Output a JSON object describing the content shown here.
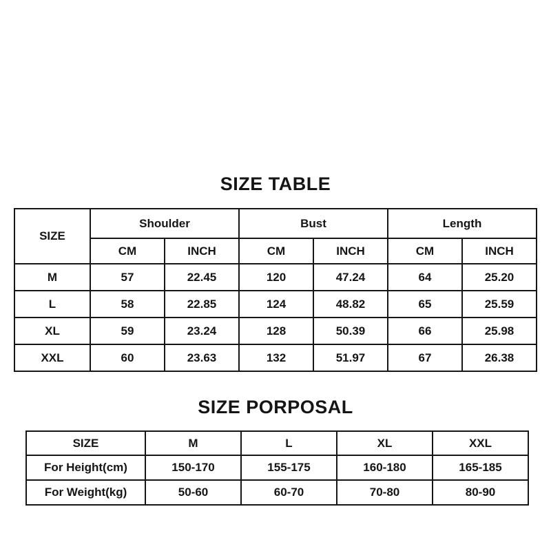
{
  "theme": {
    "bg_color": "#ffffff",
    "text_color": "#151515",
    "border_color": "#151515"
  },
  "size_table": {
    "title": "SIZE TABLE",
    "size_header": "SIZE",
    "group_headers": [
      "Shoulder",
      "Bust",
      "Length"
    ],
    "unit_headers": [
      "CM",
      "INCH",
      "CM",
      "INCH",
      "CM",
      "INCH"
    ],
    "rows": [
      {
        "size": "M",
        "values": [
          "57",
          "22.45",
          "120",
          "47.24",
          "64",
          "25.20"
        ]
      },
      {
        "size": "L",
        "values": [
          "58",
          "22.85",
          "124",
          "48.82",
          "65",
          "25.59"
        ]
      },
      {
        "size": "XL",
        "values": [
          "59",
          "23.24",
          "128",
          "50.39",
          "66",
          "25.98"
        ]
      },
      {
        "size": "XXL",
        "values": [
          "60",
          "23.63",
          "132",
          "51.97",
          "67",
          "26.38"
        ]
      }
    ]
  },
  "size_proposal": {
    "title": "SIZE PORPOSAL",
    "headers": [
      "SIZE",
      "M",
      "L",
      "XL",
      "XXL"
    ],
    "rows": [
      {
        "label": "For Height(cm)",
        "values": [
          "150-170",
          "155-175",
          "160-180",
          "165-185"
        ]
      },
      {
        "label": "For Weight(kg)",
        "values": [
          "50-60",
          "60-70",
          "70-80",
          "80-90"
        ]
      }
    ]
  },
  "chart_data": [
    {
      "type": "table",
      "title": "SIZE TABLE",
      "columns": [
        "SIZE",
        "Shoulder CM",
        "Shoulder INCH",
        "Bust CM",
        "Bust INCH",
        "Length CM",
        "Length INCH"
      ],
      "rows": [
        [
          "M",
          57,
          22.45,
          120,
          47.24,
          64,
          25.2
        ],
        [
          "L",
          58,
          22.85,
          124,
          48.82,
          65,
          25.59
        ],
        [
          "XL",
          59,
          23.24,
          128,
          50.39,
          66,
          25.98
        ],
        [
          "XXL",
          60,
          23.63,
          132,
          51.97,
          67,
          26.38
        ]
      ]
    },
    {
      "type": "table",
      "title": "SIZE PORPOSAL",
      "columns": [
        "SIZE",
        "M",
        "L",
        "XL",
        "XXL"
      ],
      "rows": [
        [
          "For Height(cm)",
          "150-170",
          "155-175",
          "160-180",
          "165-185"
        ],
        [
          "For Weight(kg)",
          "50-60",
          "60-70",
          "70-80",
          "80-90"
        ]
      ]
    }
  ]
}
